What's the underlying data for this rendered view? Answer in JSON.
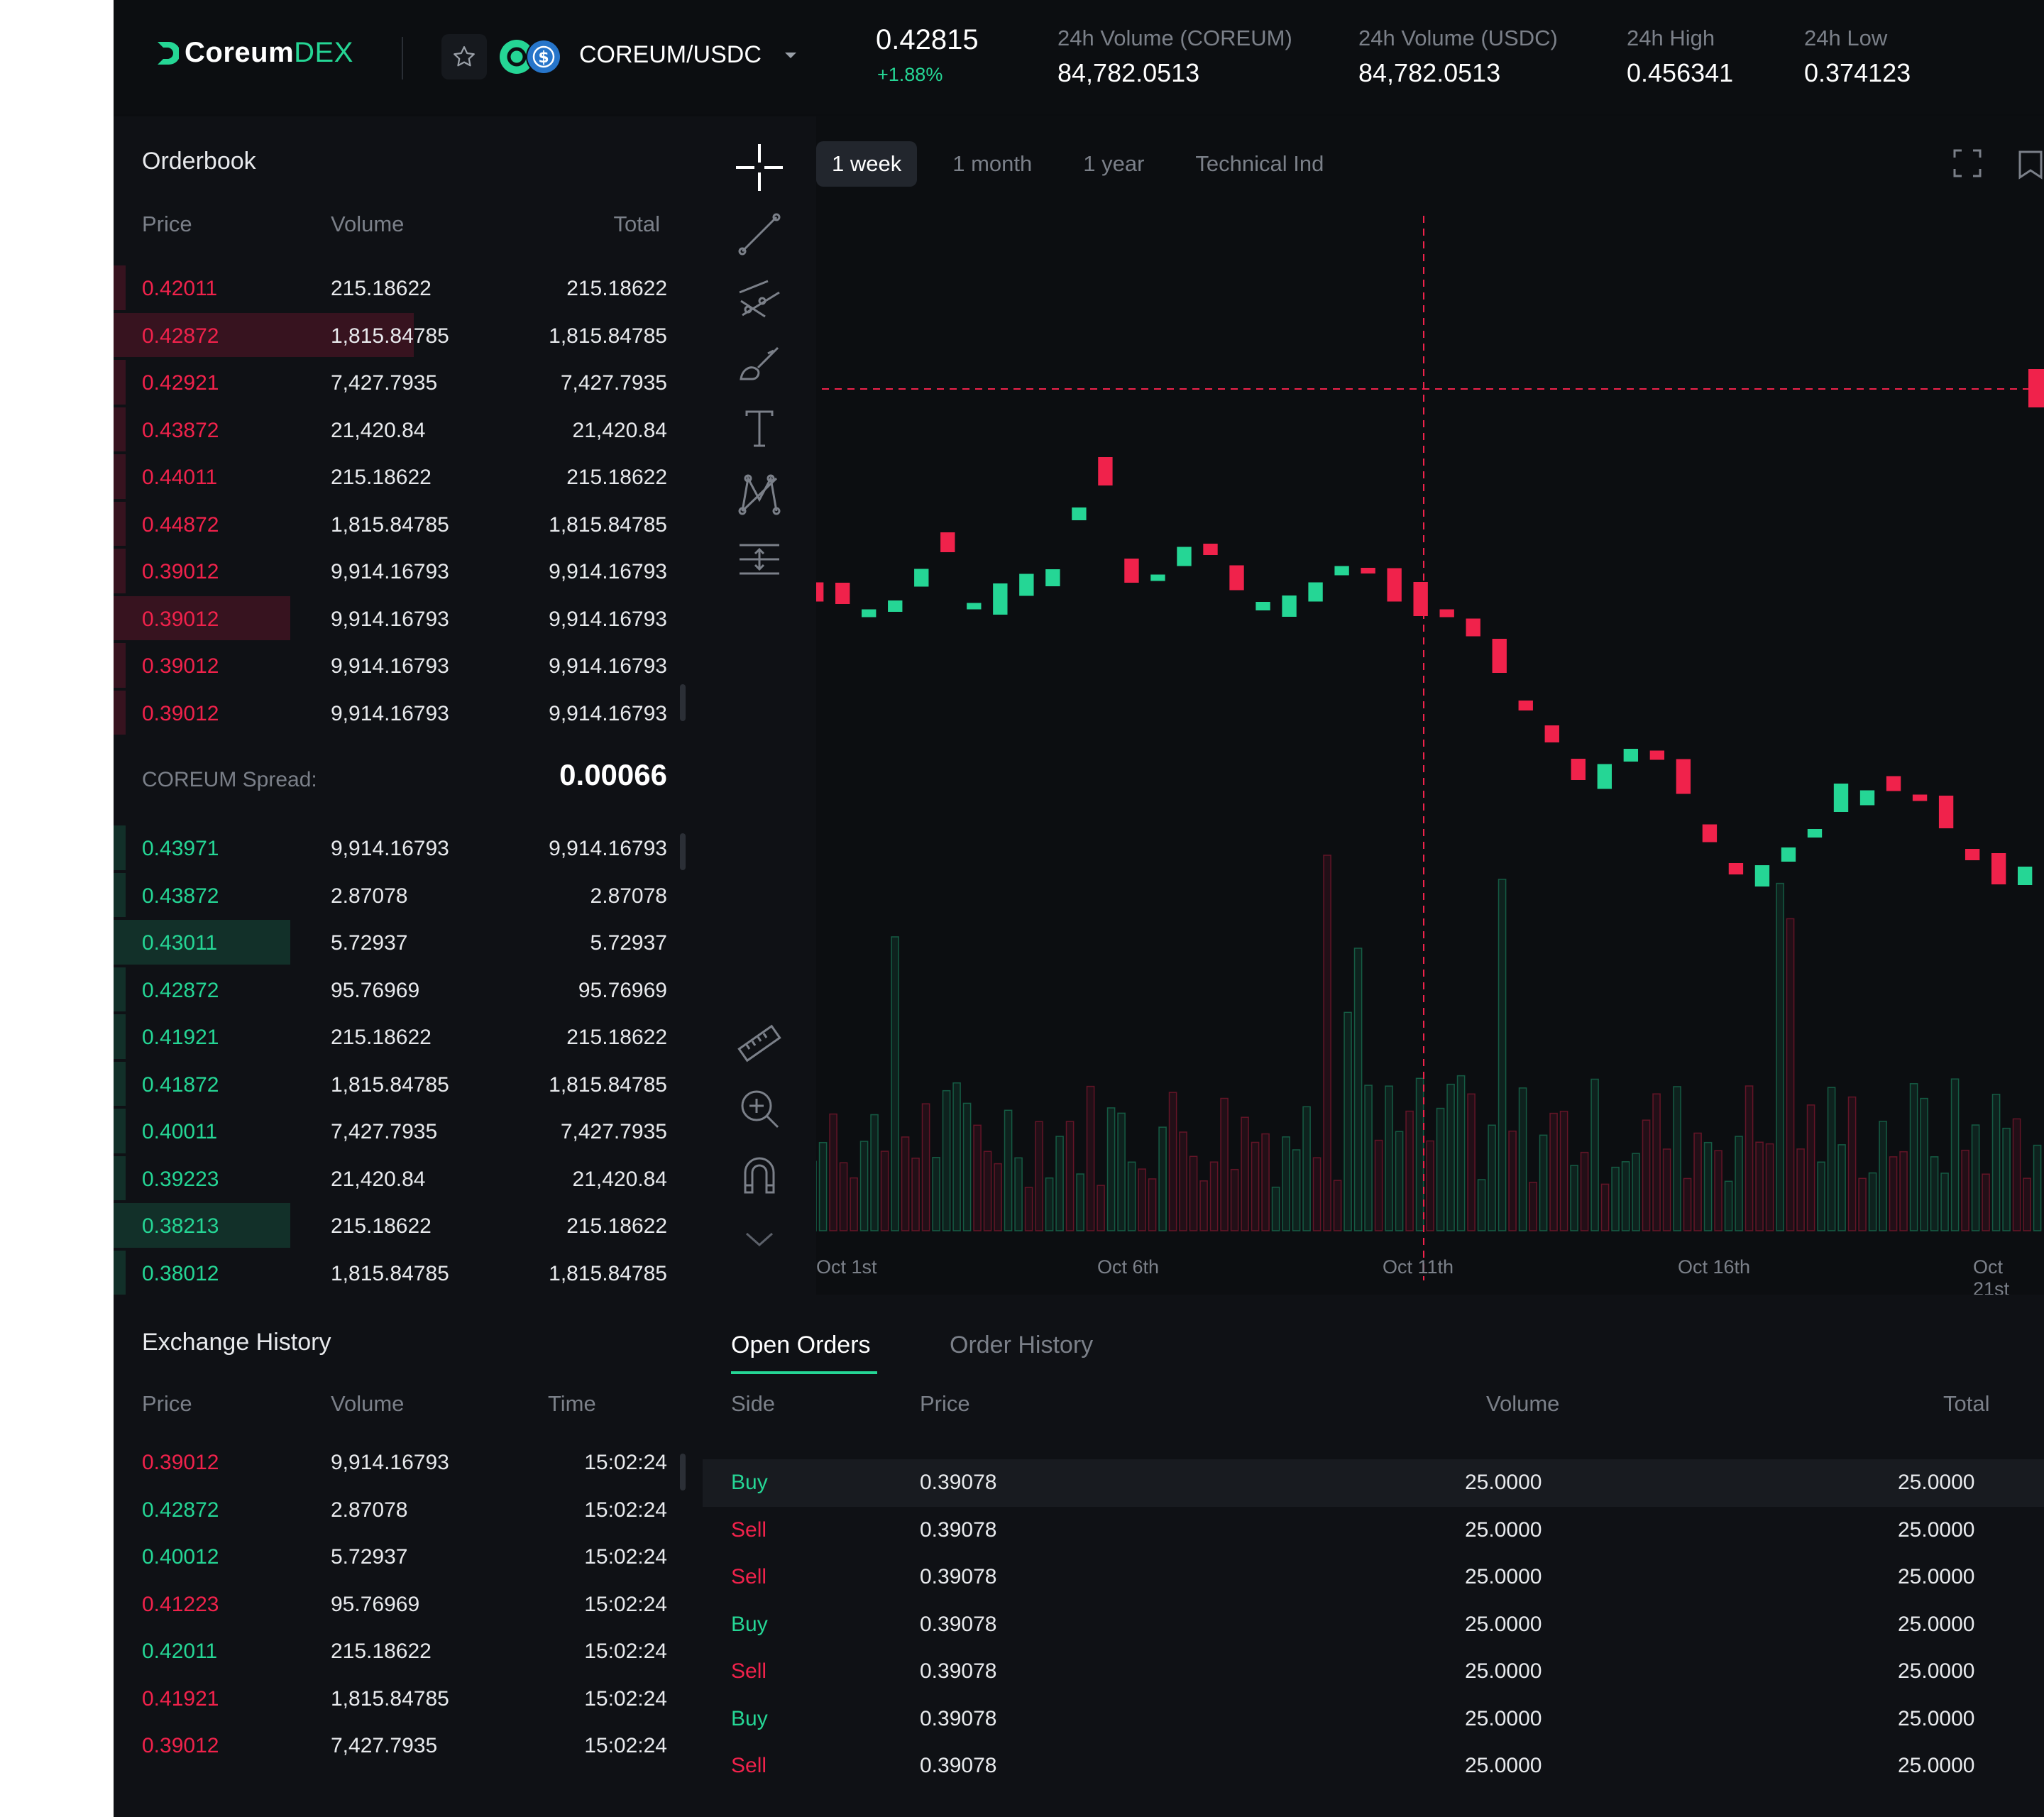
{
  "brand": {
    "name": "Coreum",
    "suffix": "DEX",
    "accent": "#25d695",
    "sell_color": "#f0224b"
  },
  "market": {
    "pair": "COREUM/USDC",
    "last_price": "0.42815",
    "change": "+1.88%",
    "stats": [
      {
        "label": "24h Volume (COREUM)",
        "value": "84,782.0513"
      },
      {
        "label": "24h Volume (USDC)",
        "value": "84,782.0513"
      },
      {
        "label": "24h High",
        "value": "0.456341"
      },
      {
        "label": "24h Low",
        "value": "0.374123"
      }
    ]
  },
  "orderbook": {
    "title": "Orderbook",
    "headers": {
      "price": "Price",
      "volume": "Volume",
      "total": "Total"
    },
    "asks": [
      {
        "price": "0.42011",
        "volume": "215.18622",
        "total": "215.18622",
        "depth": 0.02
      },
      {
        "price": "0.42872",
        "volume": "1,815.84785",
        "total": "1,815.84785",
        "depth": 0.51
      },
      {
        "price": "0.42921",
        "volume": "7,427.7935",
        "total": "7,427.7935",
        "depth": 0.02
      },
      {
        "price": "0.43872",
        "volume": "21,420.84",
        "total": "21,420.84",
        "depth": 0.02
      },
      {
        "price": "0.44011",
        "volume": "215.18622",
        "total": "215.18622",
        "depth": 0.02
      },
      {
        "price": "0.44872",
        "volume": "1,815.84785",
        "total": "1,815.84785",
        "depth": 0.02
      },
      {
        "price": "0.39012",
        "volume": "9,914.16793",
        "total": "9,914.16793",
        "depth": 0.02
      },
      {
        "price": "0.39012",
        "volume": "9,914.16793",
        "total": "9,914.16793",
        "depth": 0.3
      },
      {
        "price": "0.39012",
        "volume": "9,914.16793",
        "total": "9,914.16793",
        "depth": 0.02
      },
      {
        "price": "0.39012",
        "volume": "9,914.16793",
        "total": "9,914.16793",
        "depth": 0.02
      }
    ],
    "spread_label": "COREUM Spread:",
    "spread_value": "0.00066",
    "bids": [
      {
        "price": "0.43971",
        "volume": "9,914.16793",
        "total": "9,914.16793",
        "depth": 0.02
      },
      {
        "price": "0.43872",
        "volume": "2.87078",
        "total": "2.87078",
        "depth": 0.02
      },
      {
        "price": "0.43011",
        "volume": "5.72937",
        "total": "5.72937",
        "depth": 0.3
      },
      {
        "price": "0.42872",
        "volume": "95.76969",
        "total": "95.76969",
        "depth": 0.02
      },
      {
        "price": "0.41921",
        "volume": "215.18622",
        "total": "215.18622",
        "depth": 0.02
      },
      {
        "price": "0.41872",
        "volume": "1,815.84785",
        "total": "1,815.84785",
        "depth": 0.02
      },
      {
        "price": "0.40011",
        "volume": "7,427.7935",
        "total": "7,427.7935",
        "depth": 0.02
      },
      {
        "price": "0.39223",
        "volume": "21,420.84",
        "total": "21,420.84",
        "depth": 0.02
      },
      {
        "price": "0.38213",
        "volume": "215.18622",
        "total": "215.18622",
        "depth": 0.3
      },
      {
        "price": "0.38012",
        "volume": "1,815.84785",
        "total": "1,815.84785",
        "depth": 0.02
      }
    ]
  },
  "chart": {
    "timeframes": [
      "1 week",
      "1 month",
      "1 year",
      "Technical Ind"
    ],
    "active_timeframe": "1 week",
    "x_labels": [
      "Oct 1st",
      "Oct 6th",
      "Oct 11th",
      "Oct 16th",
      "Oct 21st"
    ]
  },
  "exchange_history": {
    "title": "Exchange History",
    "headers": {
      "price": "Price",
      "volume": "Volume",
      "time": "Time"
    },
    "rows": [
      {
        "price": "0.39012",
        "volume": "9,914.16793",
        "time": "15:02:24",
        "side": "sell"
      },
      {
        "price": "0.42872",
        "volume": "2.87078",
        "time": "15:02:24",
        "side": "buy"
      },
      {
        "price": "0.40012",
        "volume": "5.72937",
        "time": "15:02:24",
        "side": "buy"
      },
      {
        "price": "0.41223",
        "volume": "95.76969",
        "time": "15:02:24",
        "side": "sell"
      },
      {
        "price": "0.42011",
        "volume": "215.18622",
        "time": "15:02:24",
        "side": "buy"
      },
      {
        "price": "0.41921",
        "volume": "1,815.84785",
        "time": "15:02:24",
        "side": "sell"
      },
      {
        "price": "0.39012",
        "volume": "7,427.7935",
        "time": "15:02:24",
        "side": "sell"
      }
    ]
  },
  "orders": {
    "tabs": [
      "Open Orders",
      "Order History"
    ],
    "headers": {
      "side": "Side",
      "price": "Price",
      "volume": "Volume",
      "total": "Total"
    },
    "rows": [
      {
        "side": "Buy",
        "price": "0.39078",
        "volume": "25.0000",
        "total": "25.0000"
      },
      {
        "side": "Sell",
        "price": "0.39078",
        "volume": "25.0000",
        "total": "25.0000"
      },
      {
        "side": "Sell",
        "price": "0.39078",
        "volume": "25.0000",
        "total": "25.0000"
      },
      {
        "side": "Buy",
        "price": "0.39078",
        "volume": "25.0000",
        "total": "25.0000"
      },
      {
        "side": "Sell",
        "price": "0.39078",
        "volume": "25.0000",
        "total": "25.0000"
      },
      {
        "side": "Buy",
        "price": "0.39078",
        "volume": "25.0000",
        "total": "25.0000"
      },
      {
        "side": "Sell",
        "price": "0.39078",
        "volume": "25.0000",
        "total": "25.0000"
      }
    ]
  }
}
